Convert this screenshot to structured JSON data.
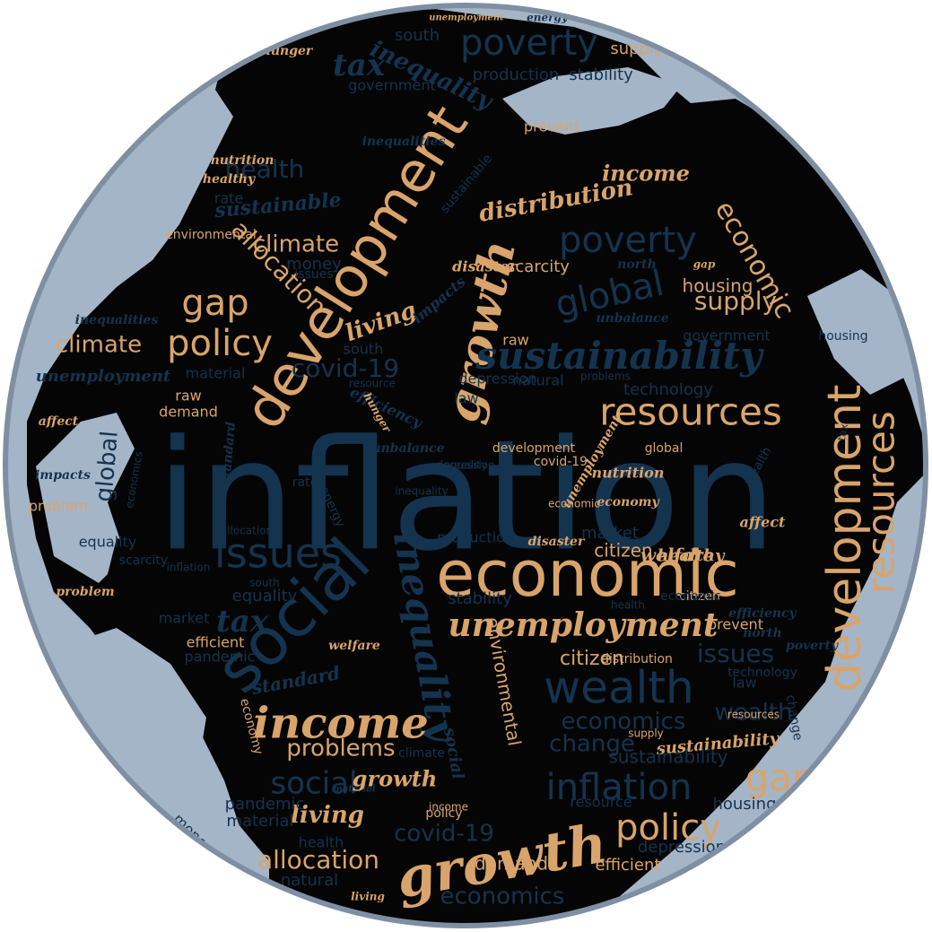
{
  "palette": {
    "background": "#ffffff",
    "globe_border": "#7f8fa3",
    "ocean": "#a4b5c8",
    "land": "#050505",
    "word_tan": "#d9a46b",
    "word_navy": "#14334f",
    "word_navy_dark": "#0f2a44"
  },
  "words": [
    {
      "text": "inflation",
      "c": "navy"
    },
    {
      "text": "economic",
      "c": "tan"
    },
    {
      "text": "development",
      "c": "tan"
    },
    {
      "text": "development",
      "c": "tan"
    },
    {
      "text": "social",
      "c": "navy"
    },
    {
      "text": "growth",
      "c": "tan"
    },
    {
      "text": "growth",
      "c": "tan"
    },
    {
      "text": "inequality",
      "c": "navy"
    },
    {
      "text": "resources",
      "c": "tan"
    },
    {
      "text": "resources",
      "c": "tan"
    },
    {
      "text": "issues",
      "c": "navy"
    },
    {
      "text": "income",
      "c": "tan"
    },
    {
      "text": "income",
      "c": "tan"
    },
    {
      "text": "wealth",
      "c": "navy"
    },
    {
      "text": "unemployment",
      "c": "tan"
    },
    {
      "text": "unemployment",
      "c": "navy"
    },
    {
      "text": "unemployment",
      "c": "tan"
    },
    {
      "text": "sustainability",
      "c": "navy"
    },
    {
      "text": "poverty",
      "c": "navy"
    },
    {
      "text": "poverty",
      "c": "navy"
    },
    {
      "text": "policy",
      "c": "tan"
    },
    {
      "text": "policy",
      "c": "tan"
    },
    {
      "text": "global",
      "c": "navy"
    },
    {
      "text": "global",
      "c": "navy"
    },
    {
      "text": "economic",
      "c": "tan"
    },
    {
      "text": "tax",
      "c": "navy"
    },
    {
      "text": "tax",
      "c": "navy"
    },
    {
      "text": "inequality",
      "c": "navy"
    },
    {
      "text": "gap",
      "c": "tan"
    },
    {
      "text": "gap",
      "c": "tan"
    },
    {
      "text": "inflation",
      "c": "navy"
    },
    {
      "text": "economics",
      "c": "navy"
    },
    {
      "text": "economics",
      "c": "navy"
    },
    {
      "text": "change",
      "c": "navy"
    },
    {
      "text": "problems",
      "c": "tan"
    },
    {
      "text": "social",
      "c": "navy"
    },
    {
      "text": "covid-19",
      "c": "navy"
    },
    {
      "text": "covid-19",
      "c": "navy"
    },
    {
      "text": "environmental",
      "c": "tan"
    },
    {
      "text": "allocation",
      "c": "tan"
    },
    {
      "text": "allocation",
      "c": "tan"
    },
    {
      "text": "living",
      "c": "tan"
    },
    {
      "text": "living",
      "c": "tan"
    },
    {
      "text": "distribution",
      "c": "tan"
    },
    {
      "text": "sustainable",
      "c": "navy"
    },
    {
      "text": "health",
      "c": "navy"
    },
    {
      "text": "climate",
      "c": "tan"
    },
    {
      "text": "climate",
      "c": "tan"
    },
    {
      "text": "supply",
      "c": "tan"
    },
    {
      "text": "standard",
      "c": "navy"
    },
    {
      "text": "wealth",
      "c": "navy"
    },
    {
      "text": "issues",
      "c": "navy"
    },
    {
      "text": "sustainability",
      "c": "tan"
    },
    {
      "text": "citizen",
      "c": "tan"
    },
    {
      "text": "housing",
      "c": "tan"
    },
    {
      "text": "production",
      "c": "navy"
    },
    {
      "text": "stability",
      "c": "navy"
    },
    {
      "text": "government",
      "c": "navy"
    },
    {
      "text": "south",
      "c": "navy"
    },
    {
      "text": "hunger",
      "c": "tan"
    },
    {
      "text": "supply",
      "c": "tan"
    },
    {
      "text": "energy",
      "c": "navy"
    },
    {
      "text": "demand",
      "c": "tan"
    },
    {
      "text": "material",
      "c": "navy"
    },
    {
      "text": "welfare",
      "c": "tan"
    },
    {
      "text": "depression",
      "c": "navy"
    },
    {
      "text": "natural",
      "c": "navy"
    },
    {
      "text": "technology",
      "c": "navy"
    },
    {
      "text": "efficient",
      "c": "tan"
    },
    {
      "text": "market",
      "c": "navy"
    },
    {
      "text": "prevent",
      "c": "tan"
    },
    {
      "text": "scarcity",
      "c": "tan"
    },
    {
      "text": "disaster",
      "c": "tan"
    },
    {
      "text": "rate",
      "c": "navy"
    },
    {
      "text": "money",
      "c": "navy"
    },
    {
      "text": "raw",
      "c": "tan"
    },
    {
      "text": "law",
      "c": "navy"
    },
    {
      "text": "equality",
      "c": "navy"
    },
    {
      "text": "pandemic",
      "c": "navy"
    },
    {
      "text": "nutrition",
      "c": "tan"
    },
    {
      "text": "healthy",
      "c": "tan"
    },
    {
      "text": "efficiency",
      "c": "navy"
    },
    {
      "text": "impacts",
      "c": "navy"
    },
    {
      "text": "affect",
      "c": "tan"
    },
    {
      "text": "north",
      "c": "navy"
    },
    {
      "text": "unbalance",
      "c": "navy"
    },
    {
      "text": "inequalities",
      "c": "navy"
    },
    {
      "text": "economy",
      "c": "tan"
    },
    {
      "text": "problem",
      "c": "tan"
    },
    {
      "text": "resource",
      "c": "navy"
    },
    {
      "text": "citizen",
      "c": "tan"
    },
    {
      "text": "depression",
      "c": "navy"
    },
    {
      "text": "health",
      "c": "navy"
    },
    {
      "text": "efficient",
      "c": "tan"
    },
    {
      "text": "housing",
      "c": "navy"
    },
    {
      "text": "material",
      "c": "navy"
    },
    {
      "text": "natural",
      "c": "navy"
    },
    {
      "text": "demand",
      "c": "tan"
    },
    {
      "text": "equality",
      "c": "navy"
    },
    {
      "text": "pandemic",
      "c": "navy"
    },
    {
      "text": "prevent",
      "c": "tan"
    },
    {
      "text": "market",
      "c": "navy"
    },
    {
      "text": "raw",
      "c": "tan"
    },
    {
      "text": "stability",
      "c": "navy"
    },
    {
      "text": "production",
      "c": "navy"
    },
    {
      "text": "government",
      "c": "navy"
    },
    {
      "text": "south",
      "c": "navy"
    },
    {
      "text": "rate",
      "c": "navy"
    },
    {
      "text": "law",
      "c": "navy"
    },
    {
      "text": "economy",
      "c": "tan"
    },
    {
      "text": "energy",
      "c": "navy"
    },
    {
      "text": "scarcity",
      "c": "navy"
    },
    {
      "text": "problem",
      "c": "tan"
    },
    {
      "text": "disaster",
      "c": "tan"
    },
    {
      "text": "nutrition",
      "c": "tan"
    },
    {
      "text": "healthy",
      "c": "tan"
    },
    {
      "text": "welfare",
      "c": "tan"
    },
    {
      "text": "affect",
      "c": "tan"
    },
    {
      "text": "impacts",
      "c": "navy"
    },
    {
      "text": "north",
      "c": "navy"
    },
    {
      "text": "hunger",
      "c": "tan"
    },
    {
      "text": "unbalance",
      "c": "navy"
    },
    {
      "text": "efficiency",
      "c": "navy"
    },
    {
      "text": "inequalities",
      "c": "navy"
    },
    {
      "text": "standard",
      "c": "navy"
    },
    {
      "text": "sustainable",
      "c": "navy"
    },
    {
      "text": "distribution",
      "c": "tan"
    },
    {
      "text": "technology",
      "c": "navy"
    },
    {
      "text": "citizen",
      "c": "tan"
    },
    {
      "text": "resources",
      "c": "tan"
    },
    {
      "text": "economic",
      "c": "navy"
    },
    {
      "text": "wealth",
      "c": "navy"
    },
    {
      "text": "global",
      "c": "tan"
    },
    {
      "text": "issues",
      "c": "navy"
    },
    {
      "text": "policy",
      "c": "tan"
    },
    {
      "text": "money",
      "c": "navy"
    },
    {
      "text": "environmental",
      "c": "tan"
    },
    {
      "text": "economics",
      "c": "navy"
    },
    {
      "text": "allocation",
      "c": "navy"
    },
    {
      "text": "development",
      "c": "tan"
    },
    {
      "text": "change",
      "c": "navy"
    },
    {
      "text": "climate",
      "c": "navy"
    },
    {
      "text": "material",
      "c": "navy"
    },
    {
      "text": "social",
      "c": "navy"
    },
    {
      "text": "unemployment",
      "c": "tan"
    },
    {
      "text": "inequality",
      "c": "navy"
    },
    {
      "text": "growth",
      "c": "tan"
    },
    {
      "text": "covid-19",
      "c": "tan"
    },
    {
      "text": "tax",
      "c": "navy"
    },
    {
      "text": "gap",
      "c": "tan"
    },
    {
      "text": "poverty",
      "c": "navy"
    },
    {
      "text": "income",
      "c": "tan"
    },
    {
      "text": "living",
      "c": "tan"
    },
    {
      "text": "inflation",
      "c": "navy"
    },
    {
      "text": "sustainability",
      "c": "navy"
    },
    {
      "text": "problems",
      "c": "navy"
    },
    {
      "text": "supply",
      "c": "tan"
    },
    {
      "text": "economic",
      "c": "tan"
    },
    {
      "text": "problems",
      "c": "tan"
    },
    {
      "text": "housing",
      "c": "navy"
    },
    {
      "text": "health",
      "c": "navy"
    },
    {
      "text": "south",
      "c": "navy"
    },
    {
      "text": "resource",
      "c": "navy"
    },
    {
      "text": "equality",
      "c": "navy"
    },
    {
      "text": "depression",
      "c": "navy"
    }
  ]
}
